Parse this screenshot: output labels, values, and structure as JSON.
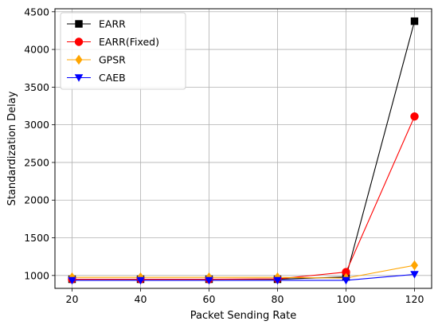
{
  "chart_data": {
    "type": "line",
    "title": "",
    "xlabel": "Packet Sending Rate",
    "ylabel": "Standardization Delay",
    "x": [
      20,
      40,
      60,
      80,
      100,
      120
    ],
    "xticks": [
      20,
      40,
      60,
      80,
      100,
      120
    ],
    "xlim": [
      15,
      125
    ],
    "yticks": [
      1000,
      1500,
      2000,
      2500,
      3000,
      3500,
      4000,
      4500
    ],
    "ylim": [
      829,
      4540
    ],
    "grid": true,
    "legend_position": "top-left",
    "series": [
      {
        "name": "EARR",
        "color": "#000000",
        "marker": "square",
        "values": [
          950,
          950,
          950,
          950,
          980,
          4375
        ]
      },
      {
        "name": "EARR(Fixed)",
        "color": "#ff0000",
        "marker": "circle",
        "values": [
          950,
          950,
          950,
          955,
          1045,
          3110
        ]
      },
      {
        "name": "GPSR",
        "color": "#ffa500",
        "marker": "diamond",
        "values": [
          975,
          975,
          975,
          975,
          965,
          1135
        ]
      },
      {
        "name": "CAEB",
        "color": "#0000ff",
        "marker": "triangle-down",
        "values": [
          935,
          935,
          935,
          935,
          935,
          1015
        ]
      }
    ]
  }
}
